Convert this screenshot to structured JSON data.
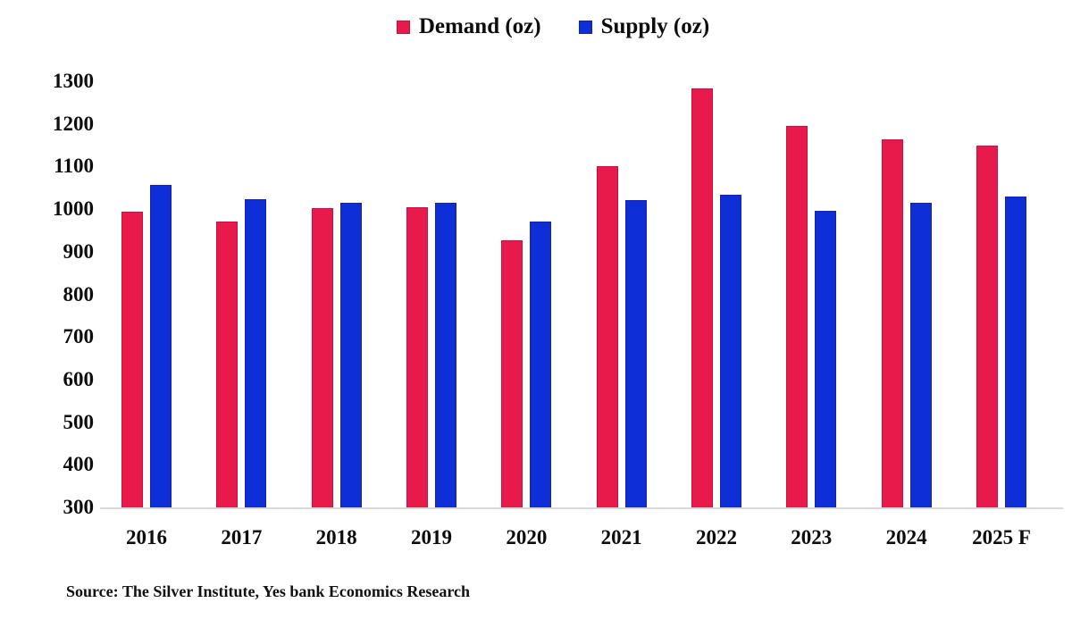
{
  "source_note": "Source: The Silver Institute, Yes bank Economics Research",
  "chart_data": {
    "type": "bar",
    "title": "",
    "xlabel": "",
    "ylabel": "",
    "categories": [
      "2016",
      "2017",
      "2018",
      "2019",
      "2020",
      "2021",
      "2022",
      "2023",
      "2024",
      "2025 F"
    ],
    "series": [
      {
        "name": "Demand (oz)",
        "color": "#E8194B",
        "border_color": "#C51240",
        "values": [
          993,
          971,
          1002,
          1004,
          926,
          1101,
          1283,
          1196,
          1164,
          1149
        ]
      },
      {
        "name": "Supply (oz)",
        "color": "#0E2FD7",
        "border_color": "#1A22A8",
        "values": [
          1056,
          1024,
          1014,
          1015,
          971,
          1022,
          1034,
          997,
          1015,
          1030
        ]
      }
    ],
    "ylim": [
      300,
      1300
    ],
    "y_ticks": [
      1300,
      1200,
      1100,
      1000,
      900,
      800,
      700,
      600,
      500,
      400,
      300
    ],
    "grid": false,
    "legend_position": "top-center"
  }
}
